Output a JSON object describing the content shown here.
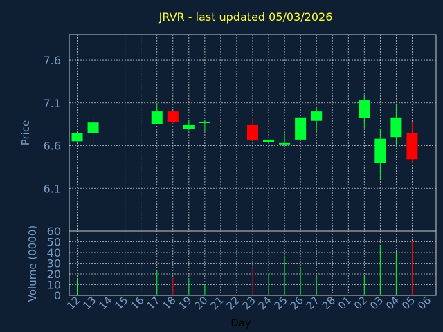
{
  "colors": {
    "background": "#0f1f33",
    "grid": "#c8c8c8",
    "frame": "#c8c8c8",
    "title": "#ffff33",
    "label": "#7a9cc4",
    "up": "#00ff33",
    "down": "#ff0000"
  },
  "chart_data": {
    "type": "candlestick",
    "title": "JRVR - last updated 05/03/2026",
    "xlabel": "Day",
    "price_ylabel": "Price",
    "volume_ylabel": "Volume (0000)",
    "price_yticks": [
      "6.1",
      "6.6",
      "7.1",
      "7.6"
    ],
    "price_ylim": [
      5.6,
      7.9
    ],
    "volume_yticks": [
      "0",
      "10",
      "20",
      "30",
      "40",
      "50",
      "60"
    ],
    "volume_ylim": [
      0,
      60
    ],
    "x_labels": [
      "12",
      "13",
      "14",
      "15",
      "16",
      "17",
      "18",
      "19",
      "20",
      "21",
      "22",
      "23",
      "24",
      "25",
      "26",
      "27",
      "28",
      "01",
      "02",
      "03",
      "04",
      "05",
      "06"
    ],
    "candles": [
      {
        "day": "12",
        "open": 6.65,
        "close": 6.75,
        "high": 6.75,
        "low": 6.65,
        "volume": 15
      },
      {
        "day": "13",
        "open": 6.75,
        "close": 6.87,
        "high": 6.93,
        "low": 6.63,
        "volume": 22
      },
      {
        "day": "17",
        "open": 6.85,
        "close": 7.0,
        "high": 7.1,
        "low": 6.85,
        "volume": 23
      },
      {
        "day": "18",
        "open": 7.0,
        "close": 6.88,
        "high": 7.0,
        "low": 6.85,
        "volume": 16
      },
      {
        "day": "19",
        "open": 6.79,
        "close": 6.84,
        "high": 6.9,
        "low": 6.78,
        "volume": 16
      },
      {
        "day": "20",
        "open": 6.87,
        "close": 6.88,
        "high": 6.89,
        "low": 6.77,
        "volume": 11
      },
      {
        "day": "23",
        "open": 6.84,
        "close": 6.66,
        "high": 6.92,
        "low": 6.66,
        "volume": 26
      },
      {
        "day": "24",
        "open": 6.64,
        "close": 6.67,
        "high": 6.67,
        "low": 6.63,
        "volume": 21
      },
      {
        "day": "25",
        "open": 6.62,
        "close": 6.63,
        "high": 6.74,
        "low": 6.6,
        "volume": 37
      },
      {
        "day": "26",
        "open": 6.67,
        "close": 6.93,
        "high": 6.93,
        "low": 6.67,
        "volume": 26
      },
      {
        "day": "27",
        "open": 6.89,
        "close": 7.0,
        "high": 7.06,
        "low": 6.77,
        "volume": 19
      },
      {
        "day": "02",
        "open": 6.92,
        "close": 7.13,
        "high": 7.2,
        "low": 6.8,
        "volume": 19
      },
      {
        "day": "03",
        "open": 6.4,
        "close": 6.68,
        "high": 6.8,
        "low": 6.2,
        "volume": 47
      },
      {
        "day": "04",
        "open": 6.7,
        "close": 6.93,
        "high": 7.08,
        "low": 6.6,
        "volume": 40
      },
      {
        "day": "05",
        "open": 6.75,
        "close": 6.44,
        "high": 6.88,
        "low": 6.4,
        "volume": 51
      }
    ]
  }
}
